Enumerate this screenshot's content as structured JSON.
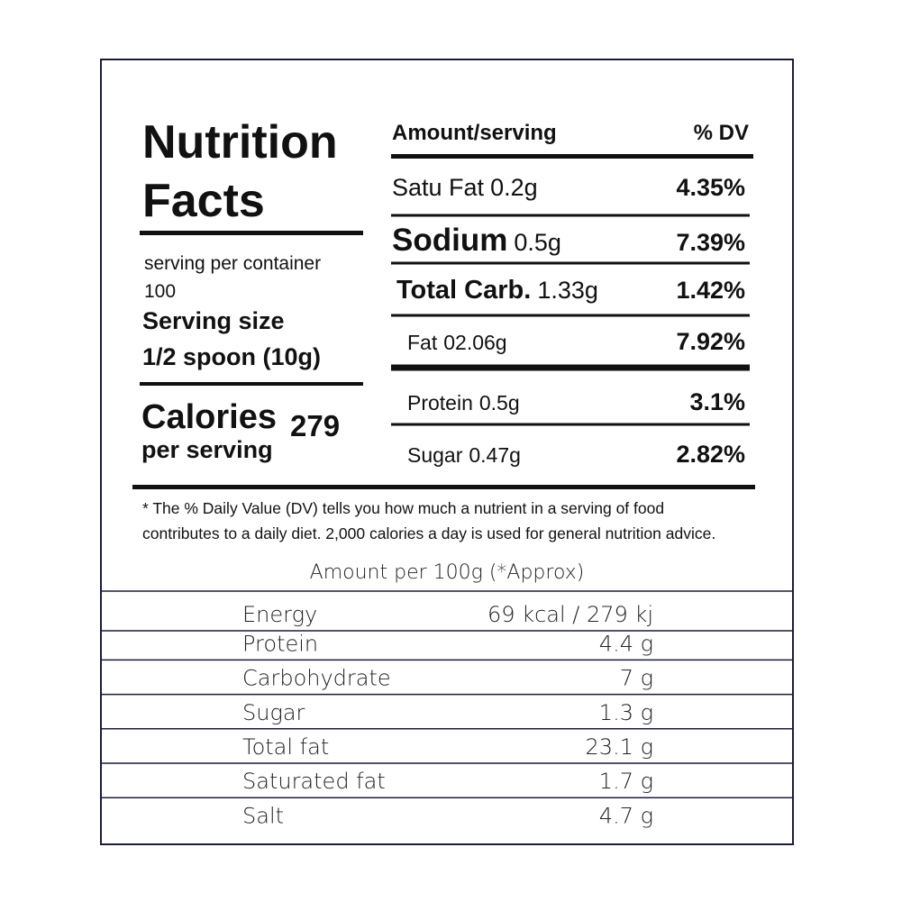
{
  "header": {
    "title_line1": "Nutrition",
    "title_line2": "Facts"
  },
  "serving": {
    "per_container_label": "serving per container",
    "per_container_value": "100",
    "size_label": "Serving size",
    "size_value": "1/2 spoon (10g)"
  },
  "calories": {
    "label": "Calories",
    "sublabel": "per serving",
    "value": "279"
  },
  "daily_values": {
    "header_amount": "Amount/serving",
    "header_dv": "% DV",
    "rows": [
      {
        "name": "Satu Fat",
        "amount": "0.2g",
        "dv": "4.35%"
      },
      {
        "name": "Sodium",
        "amount": "0.5g",
        "dv": "7.39%"
      },
      {
        "name": "Total Carb.",
        "amount": "1.33g",
        "dv": "1.42%"
      },
      {
        "name": "Fat",
        "amount": "02.06g",
        "dv": "7.92%"
      },
      {
        "name": "Protein",
        "amount": "0.5g",
        "dv": "3.1%"
      },
      {
        "name": "Sugar",
        "amount": "0.47g",
        "dv": "2.82%"
      }
    ]
  },
  "footnote": {
    "line1": "* The % Daily Value (DV) tells you how much a nutrient in a serving of food",
    "line2": "contributes to a daily diet. 2,000 calories a day is used for general nutrition advice."
  },
  "table": {
    "title": "Amount per 100g (*Approx)",
    "rows": [
      [
        "Energy",
        "69 kcal / 279 kj"
      ],
      [
        "Protein",
        "4.4 g"
      ],
      [
        "Carbohydrate",
        "7 g"
      ],
      [
        "Sugar",
        "1.3 g"
      ],
      [
        "Total fat",
        "23.1 g"
      ],
      [
        "Saturated fat",
        "1.7 g"
      ],
      [
        "Salt",
        "4.7 g"
      ]
    ]
  }
}
